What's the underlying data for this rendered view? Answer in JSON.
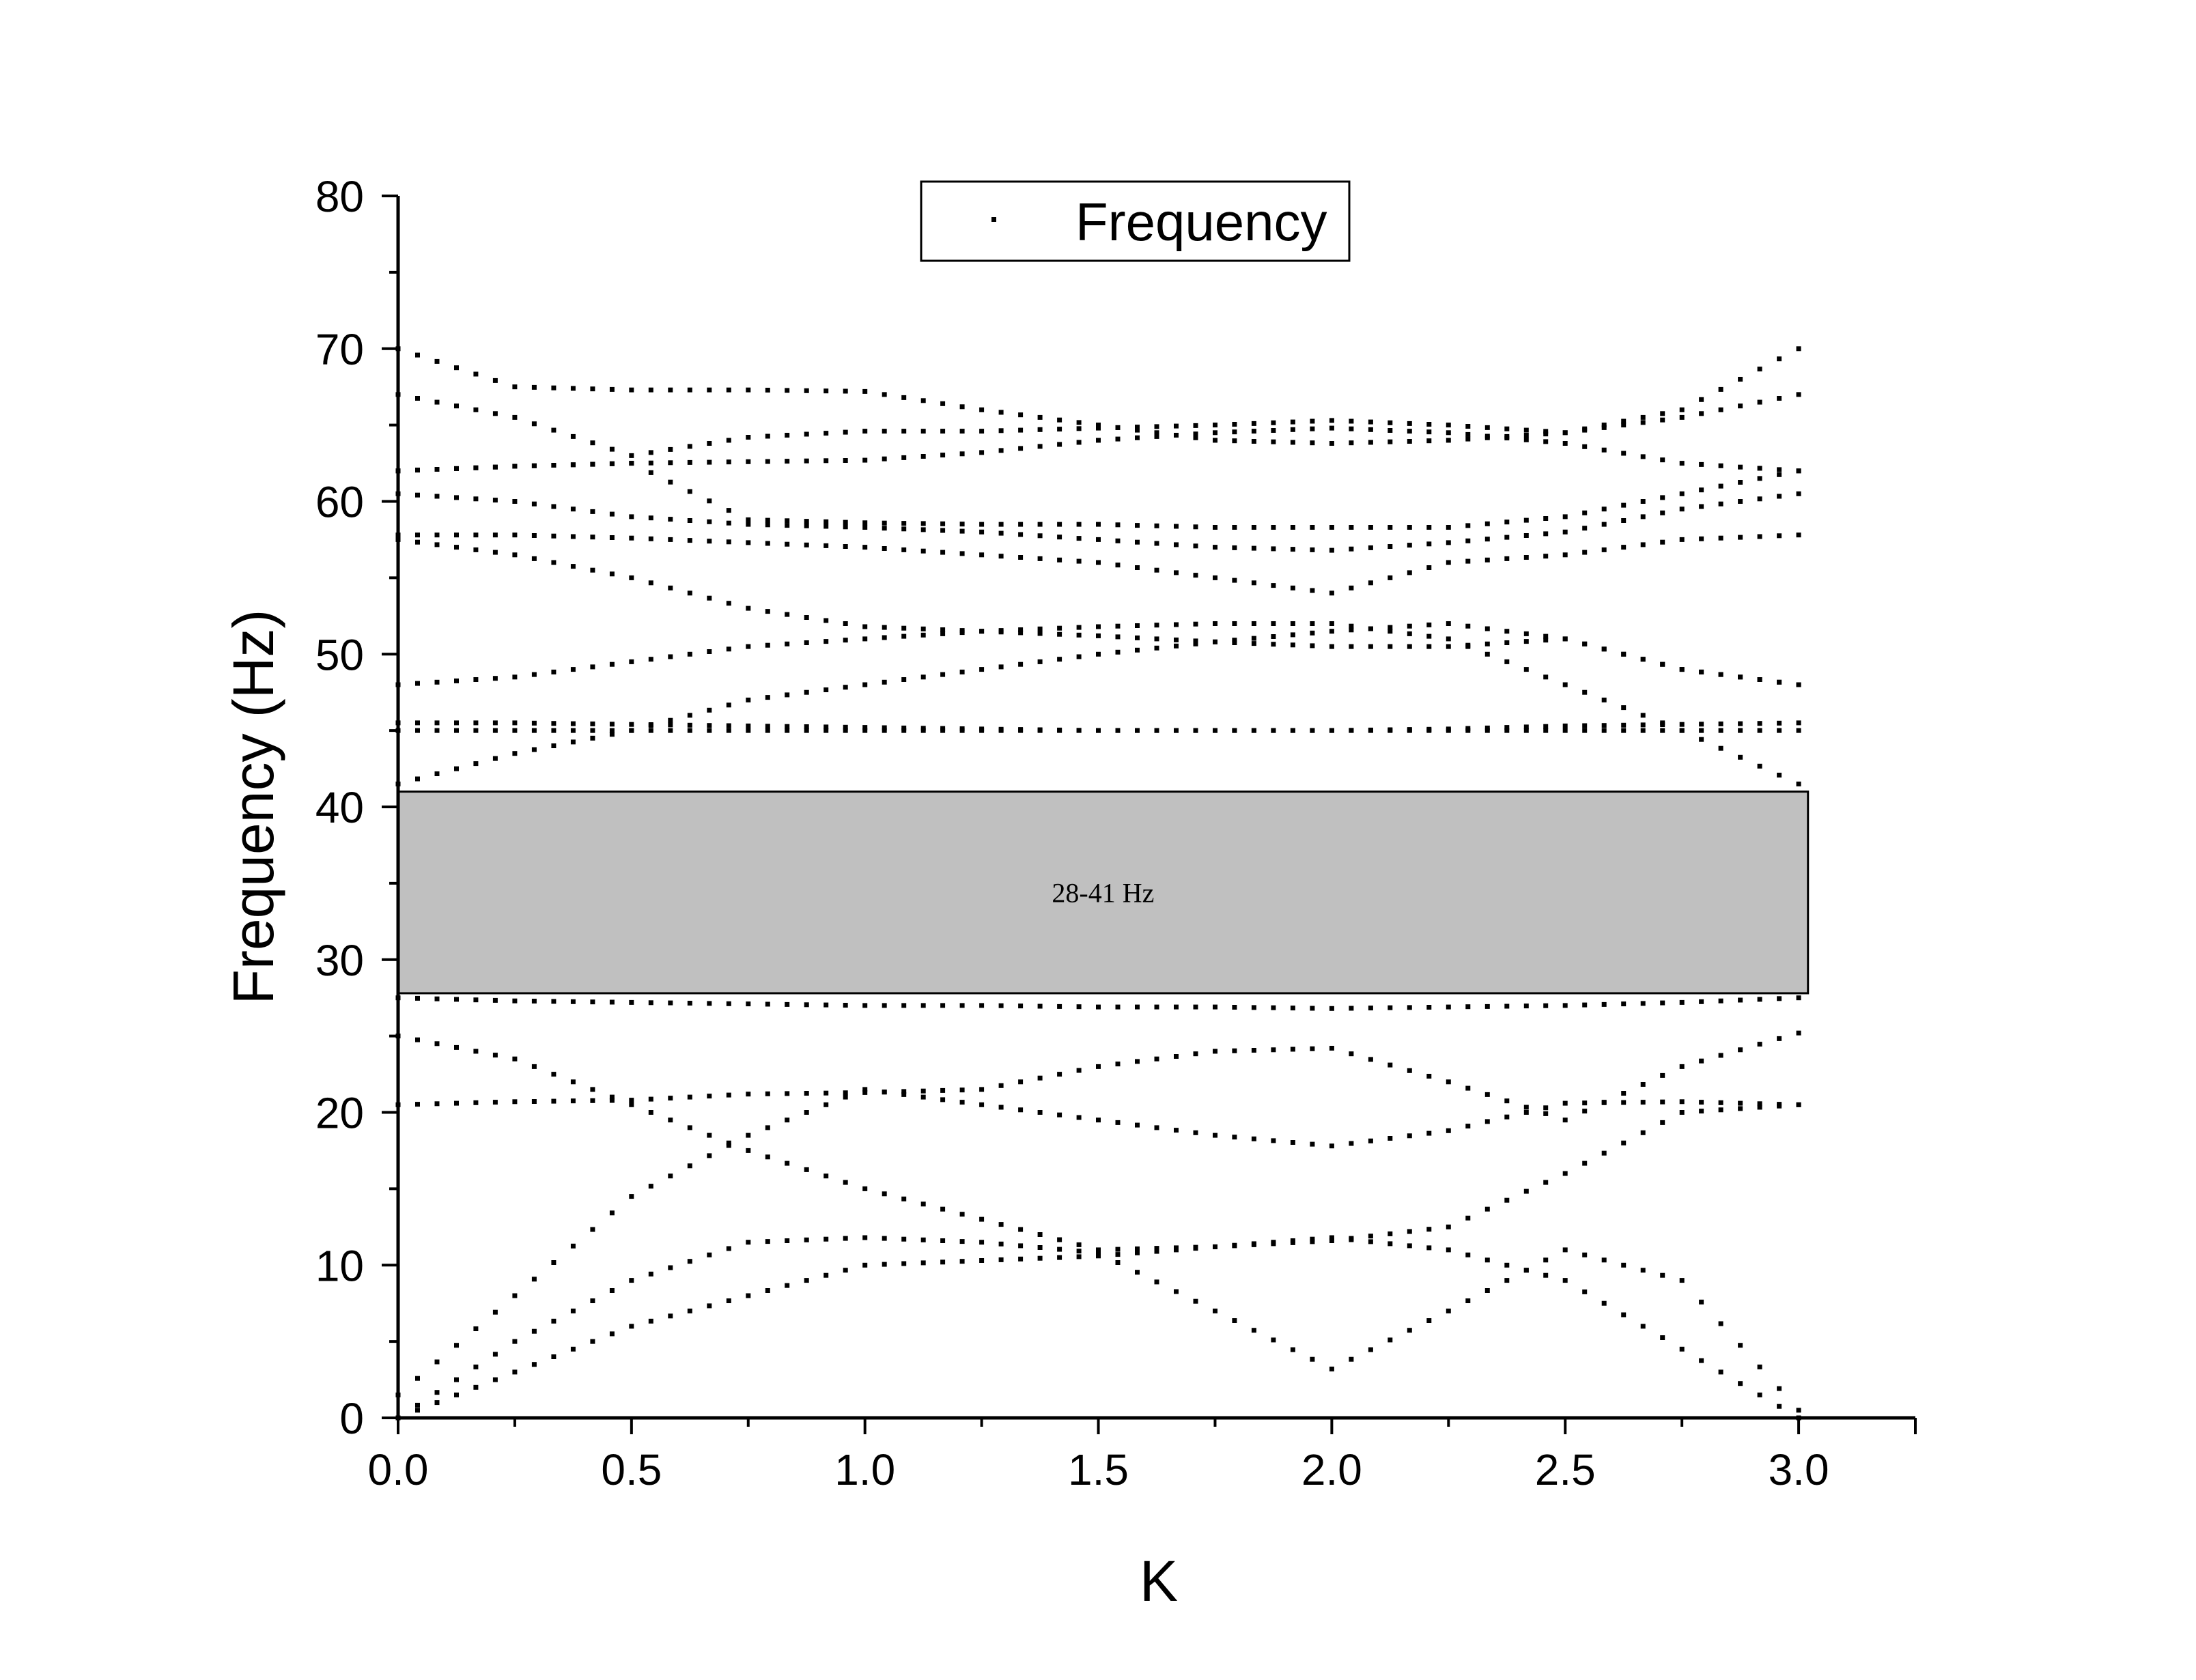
{
  "chart_data": {
    "type": "scatter",
    "title": "",
    "xlabel": "K",
    "ylabel": "Frequency (Hz)",
    "xlim": [
      0,
      3.25
    ],
    "ylim": [
      0,
      80
    ],
    "xticks": [
      "0.0",
      "0.5",
      "1.0",
      "1.5",
      "2.0",
      "2.5",
      "3.0"
    ],
    "xtick_values": [
      0,
      0.5,
      1.0,
      1.5,
      2.0,
      2.5,
      3.0
    ],
    "yticks": [
      "0",
      "10",
      "20",
      "30",
      "40",
      "50",
      "60",
      "70",
      "80"
    ],
    "ytick_values": [
      0,
      10,
      20,
      30,
      40,
      50,
      60,
      70,
      80
    ],
    "grid": false,
    "legend": {
      "position": "top-center",
      "entries": [
        "Frequency"
      ]
    },
    "band_gap": {
      "y_from": 27.8,
      "y_to": 41,
      "x_from": 0,
      "x_to": 3.02,
      "label": "28-41 Hz",
      "color": "#c0c0c0"
    },
    "marker_color": "#000000",
    "series": [
      {
        "name": "Frequency",
        "branches": [
          {
            "x": [
              0,
              0.25,
              0.5,
              0.75,
              1.0,
              1.25,
              1.5,
              1.75,
              2.0,
              2.25,
              2.5,
              2.75,
              3.0
            ],
            "y": [
              0,
              3,
              6,
              8,
              10,
              10.3,
              10.6,
              11.2,
              11.8,
              11,
              9,
              4.5,
              0
            ]
          },
          {
            "x": [
              0,
              0.25,
              0.5,
              0.75,
              1.0,
              1.25,
              1.5,
              1.75,
              2.0,
              2.25,
              2.5,
              2.75,
              3.0
            ],
            "y": [
              0,
              5,
              9,
              11.5,
              11.8,
              11.5,
              10.8,
              7,
              3.2,
              7,
              11,
              9,
              0.5
            ]
          },
          {
            "x": [
              0,
              0.25,
              0.5,
              0.75,
              1.0,
              1.25,
              1.5,
              1.75,
              2.0,
              2.25,
              2.5,
              2.75,
              3.0
            ],
            "y": [
              1.5,
              8,
              14.5,
              18.5,
              21.5,
              20.5,
              19.5,
              18.5,
              17.8,
              18.8,
              20.6,
              20.7,
              20.5
            ]
          },
          {
            "x": [
              0,
              0.25,
              0.5,
              0.75,
              1.0,
              1.25,
              1.5,
              1.75,
              2.0,
              2.25,
              2.5,
              2.75,
              3.0
            ],
            "y": [
              20.5,
              20.7,
              20.8,
              21.2,
              21.3,
              21.5,
              23,
              24,
              24.2,
              22,
              19.5,
              23,
              25.2
            ]
          },
          {
            "x": [
              0,
              0.25,
              0.5,
              0.75,
              1.0,
              1.25,
              1.5,
              1.75,
              2.0,
              2.25,
              2.5,
              2.75,
              3.0
            ],
            "y": [
              25,
              23.5,
              20.5,
              17.5,
              15,
              13,
              11,
              11.2,
              11.6,
              12.5,
              16,
              20,
              20.5
            ]
          },
          {
            "x": [
              0,
              0.25,
              0.5,
              0.75,
              1.0,
              1.25,
              1.5,
              1.75,
              2.0,
              2.25,
              2.5,
              2.75,
              3.0
            ],
            "y": [
              27.5,
              27.3,
              27.2,
              27.1,
              27,
              27,
              26.9,
              26.9,
              26.8,
              26.9,
              27,
              27.2,
              27.5
            ]
          },
          {
            "x": [
              0,
              0.25,
              0.5,
              0.75,
              1.0,
              1.25,
              1.5,
              1.75,
              2.0,
              2.25,
              2.5,
              2.75,
              3.0
            ],
            "y": [
              41.5,
              43.5,
              45,
              47,
              48,
              49,
              50,
              50.8,
              51.5,
              52,
              51,
              49,
              48
            ]
          },
          {
            "x": [
              0,
              0.25,
              0.5,
              0.75,
              1.0,
              1.25,
              1.5,
              1.75,
              2.0,
              2.25,
              2.5,
              2.75,
              3.0
            ],
            "y": [
              45,
              45,
              45,
              45,
              45,
              45,
              45,
              45,
              45,
              45,
              45,
              45,
              45
            ]
          },
          {
            "x": [
              0,
              0.25,
              0.5,
              0.75,
              1.0,
              1.25,
              1.5,
              1.75,
              2.0,
              2.25,
              2.5,
              2.75,
              3.0
            ],
            "y": [
              45.5,
              45.5,
              45.4,
              45.3,
              45.2,
              45.1,
              45,
              45,
              45,
              45.1,
              45.3,
              45.4,
              45.5
            ]
          },
          {
            "x": [
              0,
              0.25,
              0.5,
              0.75,
              1.0,
              1.25,
              1.5,
              1.75,
              2.0,
              2.25,
              2.5,
              2.75,
              3.0
            ],
            "y": [
              48,
              48.5,
              49.5,
              50.5,
              51,
              51.5,
              51.8,
              52,
              52,
              51,
              48,
              45,
              41.5
            ]
          },
          {
            "x": [
              0,
              0.25,
              0.5,
              0.75,
              1.0,
              1.25,
              1.5,
              1.75,
              2.0,
              2.25,
              2.5,
              2.75,
              3.0
            ],
            "y": [
              57.5,
              56.5,
              55,
              53,
              51.8,
              51.5,
              51.2,
              50.8,
              50.5,
              50.5,
              51,
              49,
              48
            ]
          },
          {
            "x": [
              0,
              0.25,
              0.5,
              0.75,
              1.0,
              1.25,
              1.5,
              1.75,
              2.0,
              2.25,
              2.5,
              2.75,
              3.0
            ],
            "y": [
              57.8,
              57.8,
              57.6,
              57.3,
              57,
              56.5,
              56,
              55,
              54,
              56,
              56.5,
              57.5,
              57.8
            ]
          },
          {
            "x": [
              0,
              0.25,
              0.5,
              0.75,
              1.0,
              1.25,
              1.5,
              1.75,
              2.0,
              2.25,
              2.5,
              2.75,
              3.0
            ],
            "y": [
              60.5,
              60,
              59,
              58.5,
              58.3,
              58,
              57.5,
              57,
              56.8,
              57.3,
              58,
              59.5,
              60.5
            ]
          },
          {
            "x": [
              0,
              0.25,
              0.5,
              0.75,
              1.0,
              1.25,
              1.5,
              1.75,
              2.0,
              2.25,
              2.5,
              2.75,
              3.0
            ],
            "y": [
              62,
              62.3,
              62.5,
              58.8,
              58.6,
              58.5,
              58.5,
              58.3,
              58.3,
              58.3,
              59,
              60.5,
              62
            ]
          },
          {
            "x": [
              0,
              0.25,
              0.5,
              0.75,
              1.0,
              1.25,
              1.5,
              1.75,
              2.0,
              2.25,
              2.5,
              2.75,
              3.0
            ],
            "y": [
              62,
              62.3,
              62.5,
              62.6,
              62.7,
              63.2,
              64,
              64.5,
              64.8,
              64.5,
              63.8,
              62.5,
              62
            ]
          },
          {
            "x": [
              0,
              0.25,
              0.5,
              0.75,
              1.0,
              1.25,
              1.5,
              1.75,
              2.0,
              2.25,
              2.5,
              2.75,
              3.0
            ],
            "y": [
              67,
              65.5,
              63,
              64.2,
              64.6,
              64.6,
              64.8,
              65,
              65.3,
              65,
              64.5,
              65.5,
              67
            ]
          },
          {
            "x": [
              0,
              0.25,
              0.5,
              0.75,
              1.0,
              1.25,
              1.5,
              1.75,
              2.0,
              2.25,
              2.5,
              2.75,
              3.0
            ],
            "y": [
              70,
              67.5,
              67.3,
              67.3,
              67.2,
              66,
              65,
              64,
              63.8,
              64,
              64.5,
              66,
              70
            ]
          }
        ]
      }
    ]
  }
}
